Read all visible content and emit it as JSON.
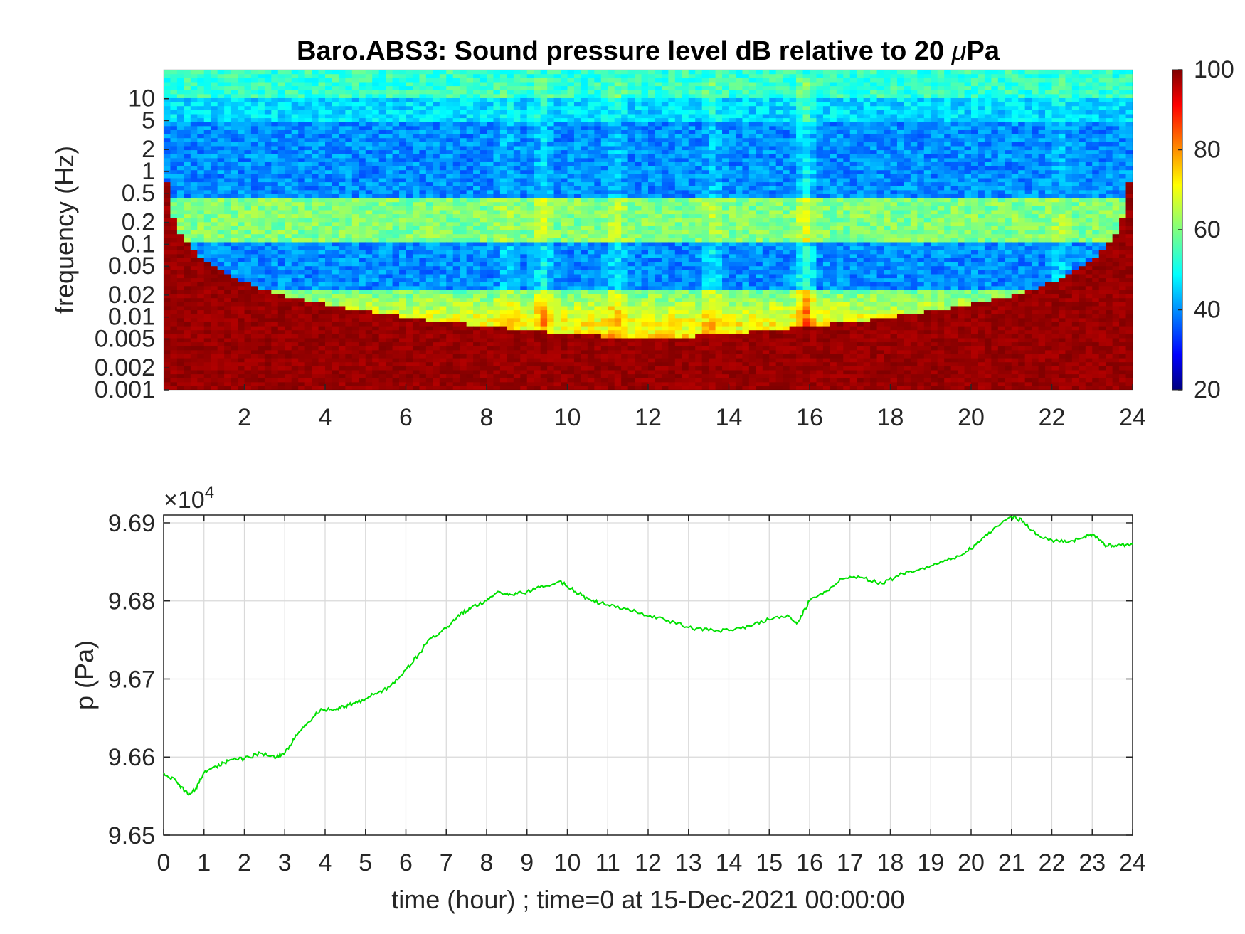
{
  "chart_data": [
    {
      "type": "heatmap",
      "title_parts": [
        "Baro.ABS3: Sound pressure level dB relative to 20 ",
        "μ",
        "Pa"
      ],
      "ylabel": "frequency (Hz)",
      "xlabel": "",
      "yscale": "log",
      "xlim": [
        0,
        24
      ],
      "ylim": [
        0.001,
        25
      ],
      "xticks": [
        2,
        4,
        6,
        8,
        10,
        12,
        14,
        16,
        18,
        20,
        22,
        24
      ],
      "xtick_labels": [
        "2",
        "4",
        "6",
        "8",
        "10",
        "12",
        "14",
        "16",
        "18",
        "20",
        "22",
        "24"
      ],
      "yticks": [
        0.001,
        0.002,
        0.005,
        0.01,
        0.02,
        0.05,
        0.1,
        0.2,
        0.5,
        1,
        2,
        5,
        10
      ],
      "ytick_labels": [
        "0.001",
        "0.002",
        "0.005",
        "0.01",
        "0.02",
        "0.05",
        "0.1",
        "0.2",
        "0.5",
        "1",
        "2",
        "5",
        "10"
      ],
      "colormap": "jet",
      "clim": [
        20,
        100
      ],
      "colorbar_ticks": [
        20,
        40,
        60,
        80,
        100
      ],
      "colorbar_tick_labels": [
        "20",
        "40",
        "60",
        "80",
        "100"
      ],
      "events": [
        {
          "hour": 9.4,
          "strength": 10
        },
        {
          "hour": 11.2,
          "strength": 8
        },
        {
          "hour": 13.6,
          "strength": 8
        },
        {
          "hour": 15.9,
          "strength": 14
        },
        {
          "hour": 8.5,
          "strength": 6
        },
        {
          "hour": 22.2,
          "strength": 6
        }
      ]
    },
    {
      "type": "line",
      "xlabel": "time (hour) ; time=0 at 15-Dec-2021 00:00:00",
      "ylabel": "p (Pa)",
      "exponent_label_base": "×10",
      "exponent_label_power": "4",
      "xlim": [
        0,
        24
      ],
      "ylim": [
        96500,
        96910
      ],
      "xticks": [
        0,
        1,
        2,
        3,
        4,
        5,
        6,
        7,
        8,
        9,
        10,
        11,
        12,
        13,
        14,
        15,
        16,
        17,
        18,
        19,
        20,
        21,
        22,
        23,
        24
      ],
      "xtick_labels": [
        "0",
        "1",
        "2",
        "3",
        "4",
        "5",
        "6",
        "7",
        "8",
        "9",
        "10",
        "11",
        "12",
        "13",
        "14",
        "15",
        "16",
        "17",
        "18",
        "19",
        "20",
        "21",
        "22",
        "23",
        "24"
      ],
      "yticks": [
        96500,
        96600,
        96700,
        96800,
        96900
      ],
      "ytick_labels": [
        "9.65",
        "9.66",
        "9.67",
        "9.68",
        "9.69"
      ],
      "grid": true,
      "series": [
        {
          "color": "#00e000",
          "x": [
            0,
            0.3,
            0.6,
            0.8,
            1.0,
            1.3,
            1.6,
            2.0,
            2.4,
            2.8,
            3.0,
            3.3,
            3.6,
            3.9,
            4.2,
            4.5,
            4.8,
            5.2,
            5.6,
            6.0,
            6.3,
            6.6,
            7.0,
            7.3,
            7.6,
            8.0,
            8.3,
            8.6,
            9.0,
            9.4,
            9.8,
            10.2,
            10.6,
            11.0,
            11.5,
            12.0,
            12.5,
            13.0,
            13.5,
            14.0,
            14.5,
            15.0,
            15.5,
            15.7,
            16.0,
            16.4,
            16.8,
            17.3,
            17.8,
            18.3,
            18.8,
            19.3,
            19.8,
            20.2,
            20.6,
            21.0,
            21.3,
            21.6,
            22.0,
            22.4,
            22.8,
            23.0,
            23.3,
            23.6,
            24.0
          ],
          "y": [
            96580,
            96570,
            96552,
            96560,
            96580,
            96588,
            96595,
            96598,
            96605,
            96600,
            96605,
            96628,
            96645,
            96662,
            96660,
            96665,
            96670,
            96680,
            96690,
            96712,
            96730,
            96752,
            96765,
            96782,
            96790,
            96800,
            96812,
            96808,
            96812,
            96818,
            96825,
            96812,
            96800,
            96795,
            96790,
            96780,
            96775,
            96766,
            96762,
            96762,
            96768,
            96776,
            96780,
            96772,
            96800,
            96812,
            96828,
            96830,
            96822,
            96835,
            96842,
            96850,
            96860,
            96875,
            96895,
            96908,
            96902,
            96885,
            96878,
            96875,
            96882,
            96885,
            96872,
            96870,
            96873
          ]
        }
      ]
    }
  ]
}
